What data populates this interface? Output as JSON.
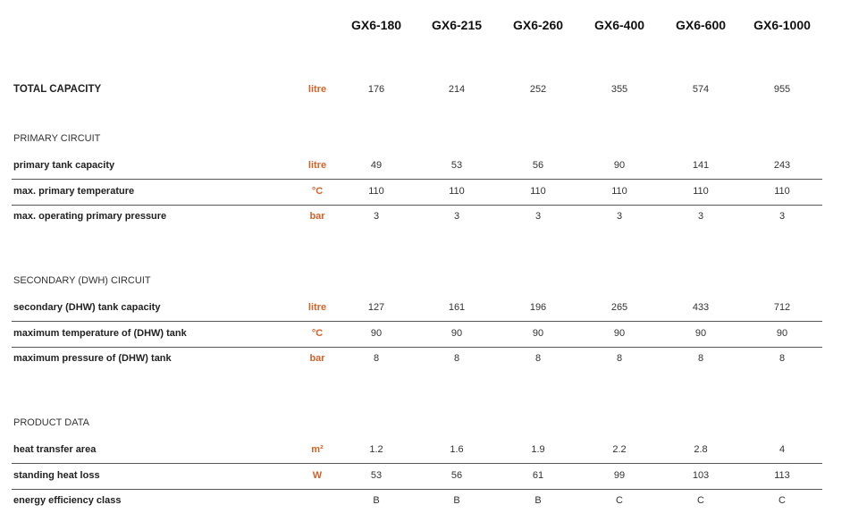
{
  "accent_color": "#d4622a",
  "models": [
    "GX6-180",
    "GX6-215",
    "GX6-260",
    "GX6-400",
    "GX6-600",
    "GX6-1000"
  ],
  "total": {
    "label": "TOTAL CAPACITY",
    "unit": "litre",
    "values": [
      "176",
      "214",
      "252",
      "355",
      "574",
      "955"
    ]
  },
  "sections": [
    {
      "title": "PRIMARY CIRCUIT",
      "rows": [
        {
          "label": "primary tank capacity",
          "unit": "litre",
          "values": [
            "49",
            "53",
            "56",
            "90",
            "141",
            "243"
          ]
        },
        {
          "label": "max. primary temperature",
          "unit": "°C",
          "values": [
            "110",
            "110",
            "110",
            "110",
            "110",
            "110"
          ]
        },
        {
          "label": "max. operating primary pressure",
          "unit": "bar",
          "values": [
            "3",
            "3",
            "3",
            "3",
            "3",
            "3"
          ]
        }
      ]
    },
    {
      "title": "SECONDARY (DWH) CIRCUIT",
      "rows": [
        {
          "label": "secondary (DHW) tank capacity",
          "unit": "litre",
          "values": [
            "127",
            "161",
            "196",
            "265",
            "433",
            "712"
          ]
        },
        {
          "label": "maximum temperature of (DHW) tank",
          "unit": "°C",
          "values": [
            "90",
            "90",
            "90",
            "90",
            "90",
            "90"
          ]
        },
        {
          "label": "maximum pressure of (DHW) tank",
          "unit": "bar",
          "values": [
            "8",
            "8",
            "8",
            "8",
            "8",
            "8"
          ]
        }
      ]
    },
    {
      "title": "PRODUCT DATA",
      "rows": [
        {
          "label": "heat transfer area",
          "unit": "m²",
          "values": [
            "1.2",
            "1.6",
            "1.9",
            "2.2",
            "2.8",
            "4"
          ]
        },
        {
          "label": "standing heat loss",
          "unit": "W",
          "values": [
            "53",
            "56",
            "61",
            "99",
            "103",
            "113"
          ]
        },
        {
          "label": "energy efficiency class",
          "unit": "",
          "values": [
            "B",
            "B",
            "B",
            "C",
            "C",
            "C"
          ]
        }
      ]
    }
  ]
}
